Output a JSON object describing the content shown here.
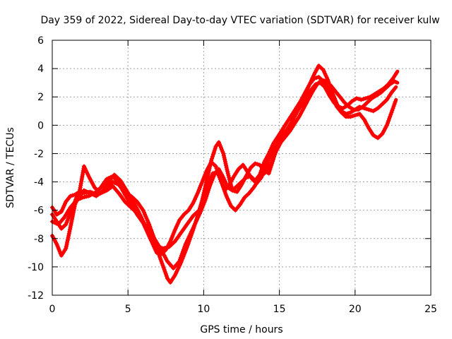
{
  "chart_data": {
    "type": "scatter",
    "title": "Day 359 of 2022, Sidereal Day-to-day VTEC variation (SDTVAR) for receiver kulw",
    "xlabel": "GPS time / hours",
    "ylabel": "SDTVAR / TECUs",
    "xlim": [
      0,
      25
    ],
    "ylim": [
      -12,
      6
    ],
    "x_ticks": [
      "0",
      "5",
      "10",
      "15",
      "20",
      "25"
    ],
    "y_ticks": [
      "-12",
      "-10",
      "-8",
      "-6",
      "-4",
      "-2",
      "0",
      "2",
      "4",
      "6"
    ],
    "x_tick_values": [
      0,
      5,
      10,
      15,
      20,
      25
    ],
    "y_tick_values": [
      -12,
      -10,
      -8,
      -6,
      -4,
      -2,
      0,
      2,
      4,
      6
    ],
    "grid": true,
    "legend": "none",
    "marker": "plus",
    "color": "#ff0000",
    "series": [
      {
        "x": [
          0.0,
          0.3,
          0.6,
          0.9,
          1.2,
          1.6,
          2.0,
          2.5,
          3.0,
          3.5,
          4.0,
          4.4,
          4.8,
          5.2,
          5.6,
          6.0,
          6.4,
          6.8,
          7.1,
          7.4,
          7.6,
          7.8,
          8.1,
          8.5,
          8.9,
          9.3,
          9.6,
          9.9,
          10.2,
          10.5,
          10.8,
          11.0,
          11.3,
          11.6,
          11.9,
          12.2,
          12.5,
          12.8,
          13.1,
          13.4,
          13.7,
          14.0,
          14.3,
          14.6,
          14.9,
          15.2,
          15.5,
          15.8,
          16.1,
          16.4,
          16.7,
          17.0,
          17.3,
          17.6,
          17.9,
          18.2,
          18.5,
          18.8,
          19.1,
          19.4,
          19.7,
          20.0,
          20.3,
          20.6,
          20.9,
          21.2,
          21.5,
          21.8,
          22.1,
          22.4,
          22.7
        ],
        "y": [
          -6.3,
          -6.8,
          -7.3,
          -7.0,
          -6.2,
          -5.1,
          -4.8,
          -4.7,
          -4.9,
          -4.5,
          -4.0,
          -4.2,
          -4.8,
          -5.0,
          -5.4,
          -6.0,
          -7.0,
          -8.2,
          -9.3,
          -10.2,
          -10.8,
          -11.1,
          -10.6,
          -9.7,
          -8.6,
          -7.4,
          -6.4,
          -5.3,
          -3.9,
          -2.5,
          -1.5,
          -1.2,
          -2.0,
          -3.4,
          -4.6,
          -4.7,
          -4.2,
          -3.6,
          -3.0,
          -2.7,
          -2.8,
          -3.2,
          -3.4,
          -2.4,
          -1.2,
          -0.7,
          -0.3,
          0.2,
          0.9,
          1.6,
          2.2,
          2.9,
          3.6,
          4.2,
          3.9,
          3.2,
          2.3,
          1.5,
          1.0,
          0.8,
          0.9,
          1.1,
          1.3,
          1.2,
          1.1,
          1.0,
          1.2,
          1.5,
          1.8,
          2.3,
          2.7
        ]
      },
      {
        "x": [
          0.0,
          0.3,
          0.6,
          0.9,
          1.2,
          1.5,
          1.8,
          2.1,
          2.4,
          2.8,
          3.2,
          3.6,
          4.0,
          4.4,
          4.8,
          5.2,
          5.6,
          6.0,
          6.4,
          6.8,
          7.2,
          7.6,
          8.0,
          8.4,
          8.8,
          9.2,
          9.5,
          9.8,
          10.1,
          10.4,
          10.7,
          11.0,
          11.3,
          11.6,
          11.9,
          12.2,
          12.5,
          12.8,
          13.1,
          13.4,
          13.7,
          14.0,
          14.3,
          14.6,
          14.9,
          15.2,
          15.5,
          15.8,
          16.1,
          16.4,
          16.7,
          17.0,
          17.3,
          17.6,
          17.9,
          18.2,
          18.5,
          18.8,
          19.1,
          19.4,
          19.7,
          20.0,
          20.3,
          20.6,
          20.9,
          21.2,
          21.5,
          21.8,
          22.1,
          22.4,
          22.7
        ],
        "y": [
          -5.8,
          -6.3,
          -6.1,
          -5.4,
          -5.0,
          -4.9,
          -4.7,
          -2.9,
          -3.6,
          -4.4,
          -4.8,
          -4.6,
          -4.3,
          -4.8,
          -5.4,
          -5.8,
          -6.2,
          -6.8,
          -7.4,
          -8.1,
          -8.8,
          -9.6,
          -10.1,
          -9.6,
          -8.4,
          -7.5,
          -6.8,
          -6.1,
          -5.3,
          -4.3,
          -3.5,
          -3.1,
          -3.7,
          -4.4,
          -4.6,
          -4.3,
          -4.0,
          -3.7,
          -3.6,
          -3.9,
          -3.5,
          -2.6,
          -2.0,
          -1.3,
          -0.8,
          -0.3,
          0.2,
          0.7,
          1.2,
          1.7,
          2.3,
          2.9,
          3.3,
          3.4,
          3.1,
          2.6,
          1.9,
          1.3,
          0.9,
          0.6,
          0.6,
          0.7,
          0.8,
          0.4,
          -0.2,
          -0.7,
          -0.9,
          -0.6,
          0.0,
          0.9,
          1.8
        ]
      },
      {
        "x": [
          0.0,
          0.3,
          0.6,
          0.9,
          1.2,
          1.5,
          1.8,
          2.1,
          2.5,
          2.9,
          3.3,
          3.7,
          4.1,
          4.5,
          4.9,
          5.3,
          5.7,
          6.1,
          6.5,
          6.9,
          7.3,
          7.7,
          8.1,
          8.5,
          8.9,
          9.3,
          9.7,
          10.0,
          10.3,
          10.6,
          10.9,
          11.2,
          11.5,
          11.8,
          12.1,
          12.4,
          12.7,
          13.0,
          13.3,
          13.6,
          13.9,
          14.2,
          14.5,
          14.8,
          15.1,
          15.4,
          15.7,
          16.0,
          16.3,
          16.6,
          16.9,
          17.2,
          17.5,
          17.8,
          18.1,
          18.4,
          18.7,
          19.0,
          19.3,
          19.6,
          19.9,
          20.2,
          20.5,
          20.8,
          21.1,
          21.4,
          21.7,
          22.0,
          22.3,
          22.6,
          22.8
        ],
        "y": [
          -7.8,
          -8.4,
          -9.2,
          -8.7,
          -7.2,
          -5.6,
          -4.9,
          -4.6,
          -4.8,
          -5.0,
          -4.7,
          -4.0,
          -3.5,
          -3.9,
          -4.6,
          -5.3,
          -6.1,
          -7.0,
          -7.9,
          -8.5,
          -8.7,
          -8.6,
          -8.2,
          -7.6,
          -7.0,
          -6.4,
          -6.0,
          -5.2,
          -4.2,
          -3.4,
          -3.3,
          -4.1,
          -5.0,
          -5.7,
          -6.0,
          -5.6,
          -5.1,
          -4.8,
          -4.4,
          -3.9,
          -3.5,
          -3.2,
          -2.6,
          -1.8,
          -1.2,
          -0.8,
          -0.4,
          0.1,
          0.6,
          1.2,
          1.8,
          2.4,
          2.9,
          3.2,
          3.1,
          2.8,
          2.4,
          2.0,
          1.6,
          1.3,
          1.1,
          1.1,
          1.3,
          1.6,
          1.9,
          2.1,
          2.3,
          2.6,
          2.9,
          3.1,
          3.0
        ]
      },
      {
        "x": [
          0.0,
          0.4,
          0.8,
          1.2,
          1.6,
          2.0,
          2.4,
          2.8,
          3.2,
          3.6,
          4.0,
          4.4,
          4.8,
          5.2,
          5.6,
          6.0,
          6.3,
          6.6,
          6.9,
          7.2,
          7.5,
          7.8,
          8.1,
          8.4,
          8.7,
          9.0,
          9.3,
          9.6,
          9.9,
          10.2,
          10.5,
          10.8,
          11.1,
          11.4,
          11.7,
          12.0,
          12.3,
          12.6,
          12.9,
          13.2,
          13.5,
          13.8,
          14.1,
          14.4,
          14.7,
          15.0,
          15.3,
          15.6,
          15.9,
          16.2,
          16.5,
          16.8,
          17.1,
          17.4,
          17.7,
          18.0,
          18.3,
          18.6,
          18.9,
          19.2,
          19.5,
          19.8,
          20.1,
          20.4,
          20.7,
          21.0,
          21.3,
          21.6,
          21.9,
          22.2,
          22.5,
          22.8
        ],
        "y": [
          -6.8,
          -7.0,
          -6.5,
          -5.8,
          -5.3,
          -5.1,
          -5.0,
          -4.8,
          -4.4,
          -3.8,
          -3.6,
          -4.1,
          -4.9,
          -5.6,
          -6.3,
          -6.9,
          -7.6,
          -8.3,
          -9.0,
          -9.1,
          -8.8,
          -8.2,
          -7.4,
          -6.7,
          -6.3,
          -6.0,
          -5.5,
          -4.8,
          -4.0,
          -3.2,
          -2.6,
          -2.9,
          -3.8,
          -4.6,
          -4.2,
          -3.6,
          -3.1,
          -2.8,
          -3.3,
          -3.8,
          -4.1,
          -3.7,
          -2.9,
          -2.2,
          -1.6,
          -1.1,
          -0.6,
          -0.2,
          0.4,
          1.0,
          1.5,
          2.0,
          2.5,
          2.9,
          3.0,
          2.7,
          2.1,
          1.6,
          1.3,
          1.2,
          1.4,
          1.7,
          1.9,
          1.8,
          1.9,
          2.0,
          2.2,
          2.4,
          2.6,
          2.9,
          3.3,
          3.8
        ]
      }
    ]
  }
}
